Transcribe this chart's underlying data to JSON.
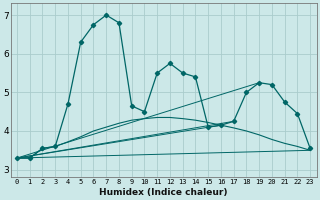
{
  "xlabel": "Humidex (Indice chaleur)",
  "bg_color": "#cce8e8",
  "grid_color": "#aacccc",
  "line_color": "#006666",
  "xlim": [
    -0.5,
    23.5
  ],
  "ylim": [
    2.8,
    7.3
  ],
  "yticks": [
    3,
    4,
    5,
    6,
    7
  ],
  "xticks": [
    0,
    1,
    2,
    3,
    4,
    5,
    6,
    7,
    8,
    9,
    10,
    11,
    12,
    13,
    14,
    15,
    16,
    17,
    18,
    19,
    20,
    21,
    22,
    23
  ],
  "curve1_x": [
    0,
    1,
    2,
    3,
    4,
    5,
    6,
    7,
    8,
    9,
    10,
    11,
    12,
    13,
    14,
    15,
    16,
    17,
    18,
    19,
    20,
    21,
    22,
    23
  ],
  "curve1_y": [
    3.3,
    3.3,
    3.55,
    3.6,
    4.7,
    6.3,
    6.75,
    7.0,
    6.8,
    4.65,
    4.5,
    5.5,
    5.75,
    5.5,
    5.4,
    4.1,
    4.15,
    4.25,
    5.0,
    5.25,
    5.2,
    4.75,
    4.45,
    3.55
  ],
  "smooth_x": [
    0,
    1,
    2,
    3,
    4,
    5,
    6,
    7,
    8,
    9,
    10,
    11,
    12,
    13,
    14,
    15,
    16,
    17,
    18,
    19,
    20,
    21,
    22,
    23
  ],
  "smooth_y": [
    3.3,
    3.3,
    3.55,
    3.6,
    3.72,
    3.85,
    4.0,
    4.1,
    4.2,
    4.28,
    4.32,
    4.35,
    4.35,
    4.32,
    4.28,
    4.22,
    4.15,
    4.08,
    4.0,
    3.9,
    3.78,
    3.68,
    3.6,
    3.5
  ],
  "line1_x": [
    0,
    23
  ],
  "line1_y": [
    3.3,
    3.5
  ],
  "line2_x": [
    0,
    16
  ],
  "line2_y": [
    3.3,
    4.15
  ],
  "line3_x": [
    0,
    17
  ],
  "line3_y": [
    3.3,
    4.25
  ],
  "line4_x": [
    0,
    19
  ],
  "line4_y": [
    3.3,
    5.25
  ]
}
